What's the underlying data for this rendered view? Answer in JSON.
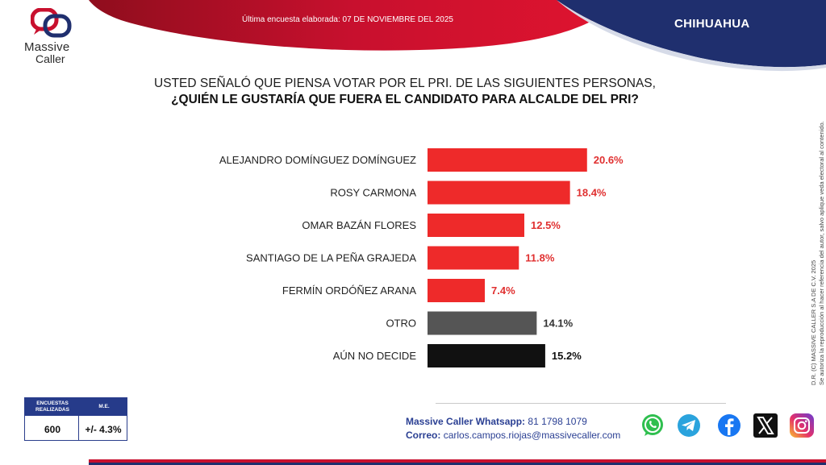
{
  "header": {
    "survey_date": "Última encuesta elaborada: 07 DE NOVIEMBRE DEL 2025",
    "region": "CHIHUAHUA"
  },
  "logo": {
    "line1": "Massive",
    "line2": "Caller"
  },
  "question": {
    "line1": "USTED SEÑALÓ QUE PIENSA VOTAR POR EL PRI. DE LAS SIGUIENTES PERSONAS,",
    "line2": "¿QUIÉN LE GUSTARÍA QUE FUERA EL CANDIDATO PARA ALCALDE DEL PRI?"
  },
  "chart_data": {
    "type": "bar",
    "orientation": "horizontal",
    "categories": [
      "ALEJANDRO DOMÍNGUEZ DOMÍNGUEZ",
      "ROSY CARMONA",
      "OMAR BAZÁN FLORES",
      "SANTIAGO DE LA PEÑA GRAJEDA",
      "FERMÍN ORDÓÑEZ ARANA",
      "OTRO",
      "AÚN NO DECIDE"
    ],
    "values": [
      20.6,
      18.4,
      12.5,
      11.8,
      7.4,
      14.1,
      15.2
    ],
    "value_labels": [
      "20.6%",
      "18.4%",
      "12.5%",
      "11.8%",
      "7.4%",
      "14.1%",
      "15.2%"
    ],
    "bar_colors": [
      "#ee2a2a",
      "#ee2a2a",
      "#ee2a2a",
      "#ee2a2a",
      "#ee2a2a",
      "#555555",
      "#111111"
    ],
    "label_colors": [
      "#e03030",
      "#e03030",
      "#e03030",
      "#e03030",
      "#e03030",
      "#333333",
      "#111111"
    ],
    "xlim": [
      0,
      25
    ],
    "grid": false
  },
  "copyright": {
    "line1": "D.R. (C) MASSIVE CALLER S.A DE C.V. 2025",
    "line2": "Se autoriza la reproducción al hacer referencia del autor, salvo aplique veda electoral al contenido."
  },
  "stats": {
    "surveys_label": "ENCUESTAS REALIZADAS",
    "surveys_value": "600",
    "me_label": "M.E.",
    "me_value": "+/- 4.3%"
  },
  "contact": {
    "whatsapp_label": "Massive Caller Whatsapp:",
    "whatsapp_value": "81 1798 1079",
    "email_label": "Correo:",
    "email_value": "carlos.campos.riojas@massivecaller.com"
  },
  "socials": [
    "whatsapp-icon",
    "telegram-icon",
    "facebook-icon",
    "x-icon",
    "instagram-icon"
  ],
  "colors": {
    "red": "#c8102e",
    "navy": "#1f2f6e",
    "accent_blue": "#2a3f93"
  }
}
